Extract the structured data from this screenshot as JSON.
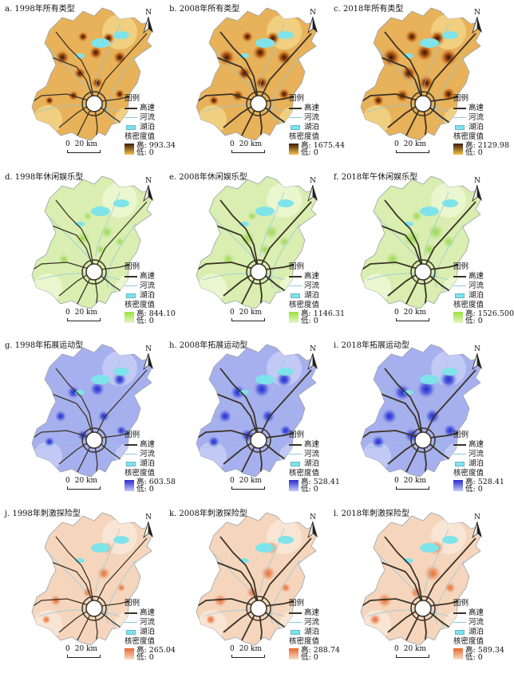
{
  "legend_labels": {
    "title": "图例",
    "highway": "高速",
    "river": "河流",
    "lake": "湖泊",
    "kd_title": "核密度值",
    "low": "低: 0",
    "scale_zero": "0",
    "scale_dist": "20 km",
    "north": "N"
  },
  "colors": {
    "highway": "#3a3226",
    "river": "#8fc6dc",
    "lake": "#7fe3ea"
  },
  "panels": [
    {
      "title": "a. 1998年所有类型",
      "high": "高: 993.34",
      "type": "all"
    },
    {
      "title": "b. 2008年所有类型",
      "high": "高: 1675.44",
      "type": "all"
    },
    {
      "title": "c. 2018年所有类型",
      "high": "高: 2129.98",
      "type": "all"
    },
    {
      "title": "d. 1998年休闲娱乐型",
      "high": "高: 844.10",
      "type": "leisure"
    },
    {
      "title": "e. 2008年休闲娱乐型",
      "high": "高: 1146.31",
      "type": "leisure"
    },
    {
      "title": "f. 2018年午休闲娱乐型",
      "high": "高: 1526.500",
      "type": "leisure"
    },
    {
      "title": "g. 1998年拓展运动型",
      "high": "高: 603.58",
      "type": "sport"
    },
    {
      "title": "h. 2008年拓展运动型",
      "high": "高: 528.41",
      "type": "sport"
    },
    {
      "title": "i. 2018年拓展运动型",
      "high": "高: 528.41",
      "type": "sport"
    },
    {
      "title": "j. 1998年刺激探险型",
      "high": "高: 265.04",
      "type": "thrill"
    },
    {
      "title": "k. 2008年刺激探险型",
      "high": "高: 288.74",
      "type": "thrill"
    },
    {
      "title": "l. 2018年刺激探险型",
      "high": "高: 589.34",
      "type": "thrill"
    }
  ],
  "palettes": {
    "all": {
      "base": "#e8b25a",
      "light": "#f2d68a",
      "hot": "#2a1408",
      "mid": "#b65a14",
      "ramp_high": "#3b1a06",
      "ramp_low": "#f7c24a"
    },
    "leisure": {
      "base": "#d9eeb0",
      "light": "#eef7d4",
      "hot": "#9bd84a",
      "mid": "#bde489",
      "ramp_high": "#9be23a",
      "ramp_low": "#e5f5c6"
    },
    "sport": {
      "base": "#a7b0ee",
      "light": "#c9cff6",
      "hot": "#2130d6",
      "mid": "#5864dc",
      "ramp_high": "#2a2bd0",
      "ramp_low": "#c6ccf4"
    },
    "thrill": {
      "base": "#f5d6bd",
      "light": "#fae8da",
      "hot": "#e8703a",
      "mid": "#ef9d72",
      "ramp_high": "#e9672e",
      "ramp_low": "#f7dcc8"
    }
  }
}
